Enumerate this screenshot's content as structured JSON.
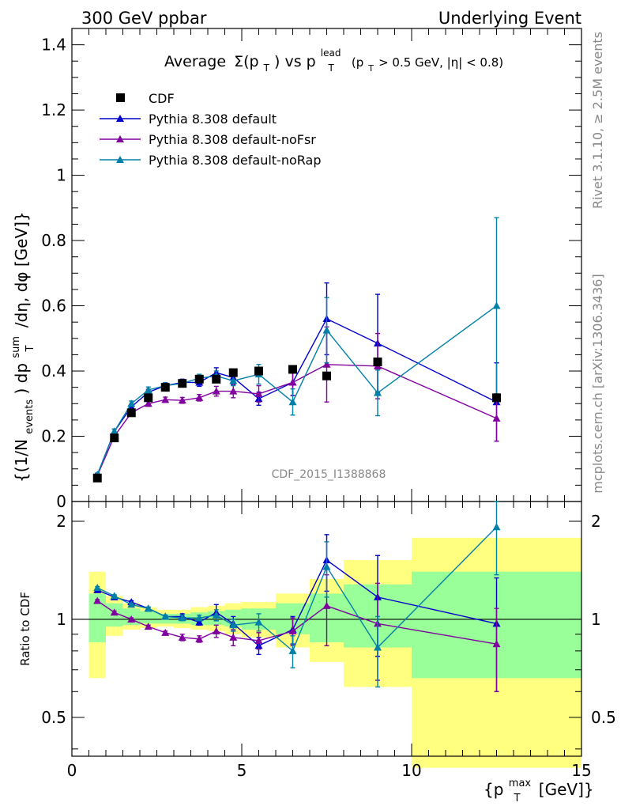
{
  "header": {
    "left": "300 GeV ppbar",
    "right": "Underlying Event"
  },
  "side": {
    "rivet": "Rivet 3.1.10, ≥ 2.5M events",
    "mcplots": "mcplots.cern.ch [arXiv:1306.3436]"
  },
  "chart_data": [
    {
      "type": "scatter",
      "title": {
        "main": "Average",
        "sym": "Σ(p",
        "sub1": "T",
        "close": ") vs p",
        "sup": "lead",
        "sub2": "T",
        "cut1": " (p",
        "sub3": "T",
        "cut2": " > 0.5 GeV, |η| < 0.8)"
      },
      "ylabel": {
        "a": "{(1/N",
        "a_sub": "events",
        "b": ") dp",
        "b_sup": "sum",
        "b_sub": "T",
        "c": "/dη, dφ [GeV]}"
      },
      "watermark": "CDF_2015_I1388868",
      "xlim": [
        0,
        15
      ],
      "ylim": [
        0,
        1.45
      ],
      "yticks": [
        "0",
        "0.2",
        "0.4",
        "0.6",
        "0.8",
        "1",
        "1.2",
        "1.4"
      ],
      "legend_position": "top-left",
      "x": [
        0.75,
        1.25,
        1.75,
        2.25,
        2.75,
        3.25,
        3.75,
        4.25,
        4.75,
        5.5,
        6.5,
        7.5,
        9.0,
        12.5
      ],
      "series": [
        {
          "name": "CDF",
          "color": "#000000",
          "marker": "square",
          "values": [
            0.072,
            0.195,
            0.272,
            0.318,
            0.35,
            0.362,
            0.375,
            0.375,
            0.395,
            0.4,
            0.405,
            0.385,
            0.428,
            0.318
          ]
        },
        {
          "name": "Pythia 8.308 default",
          "color": "#0000cc",
          "marker": "triangle",
          "values": [
            0.082,
            0.215,
            0.29,
            0.335,
            0.355,
            0.365,
            0.365,
            0.395,
            0.38,
            0.315,
            0.365,
            0.56,
            0.485,
            0.305
          ],
          "err": [
            0.005,
            0.007,
            0.008,
            0.009,
            0.009,
            0.01,
            0.012,
            0.015,
            0.02,
            0.02,
            0.04,
            0.11,
            0.15,
            0.12
          ]
        },
        {
          "name": "Pythia 8.308 default-noFsr",
          "color": "#8000a0",
          "marker": "triangle",
          "values": [
            0.08,
            0.2,
            0.272,
            0.3,
            0.312,
            0.31,
            0.318,
            0.338,
            0.338,
            0.33,
            0.365,
            0.42,
            0.415,
            0.255
          ],
          "err": [
            0.005,
            0.006,
            0.007,
            0.008,
            0.008,
            0.009,
            0.01,
            0.015,
            0.02,
            0.025,
            0.04,
            0.115,
            0.1,
            0.07
          ]
        },
        {
          "name": "Pythia 8.308 default-noRap",
          "color": "#0080a8",
          "marker": "triangle",
          "values": [
            0.082,
            0.215,
            0.3,
            0.342,
            0.355,
            0.362,
            0.378,
            0.385,
            0.37,
            0.39,
            0.305,
            0.525,
            0.333,
            0.6
          ],
          "err": [
            0.005,
            0.007,
            0.008,
            0.009,
            0.009,
            0.01,
            0.012,
            0.015,
            0.015,
            0.03,
            0.04,
            0.1,
            0.07,
            0.27
          ]
        }
      ]
    },
    {
      "type": "scatter",
      "ylabel": "Ratio to CDF",
      "xlabel": {
        "a": "{p",
        "sup": "max",
        "sub": "T",
        "b": " [GeV]}"
      },
      "xlim": [
        0,
        15
      ],
      "ylim": [
        0.38,
        2.3
      ],
      "xticks": [
        "0",
        "5",
        "10",
        "15"
      ],
      "yticks": [
        "0.5",
        "1",
        "2"
      ],
      "bins": [
        {
          "lo": 0.5,
          "hi": 1.0,
          "inner": [
            0.85,
            1.2
          ],
          "outer": [
            0.66,
            1.4
          ]
        },
        {
          "lo": 1.0,
          "hi": 1.5,
          "inner": [
            0.95,
            1.12
          ],
          "outer": [
            0.89,
            1.18
          ]
        },
        {
          "lo": 1.5,
          "hi": 2.0,
          "inner": [
            0.96,
            1.08
          ],
          "outer": [
            0.93,
            1.12
          ]
        },
        {
          "lo": 2.0,
          "hi": 2.5,
          "inner": [
            0.97,
            1.06
          ],
          "outer": [
            0.94,
            1.09
          ]
        },
        {
          "lo": 2.5,
          "hi": 3.0,
          "inner": [
            0.97,
            1.04
          ],
          "outer": [
            0.95,
            1.07
          ]
        },
        {
          "lo": 3.0,
          "hi": 3.5,
          "inner": [
            0.97,
            1.04
          ],
          "outer": [
            0.94,
            1.07
          ]
        },
        {
          "lo": 3.5,
          "hi": 4.0,
          "inner": [
            0.96,
            1.05
          ],
          "outer": [
            0.93,
            1.09
          ]
        },
        {
          "lo": 4.0,
          "hi": 4.5,
          "inner": [
            0.96,
            1.06
          ],
          "outer": [
            0.92,
            1.1
          ]
        },
        {
          "lo": 4.5,
          "hi": 5.0,
          "inner": [
            0.95,
            1.07
          ],
          "outer": [
            0.9,
            1.12
          ]
        },
        {
          "lo": 5.0,
          "hi": 6.0,
          "inner": [
            0.93,
            1.08
          ],
          "outer": [
            0.88,
            1.13
          ]
        },
        {
          "lo": 6.0,
          "hi": 7.0,
          "inner": [
            0.9,
            1.12
          ],
          "outer": [
            0.82,
            1.2
          ]
        },
        {
          "lo": 7.0,
          "hi": 8.0,
          "inner": [
            0.85,
            1.2
          ],
          "outer": [
            0.74,
            1.33
          ]
        },
        {
          "lo": 8.0,
          "hi": 10.0,
          "inner": [
            0.82,
            1.28
          ],
          "outer": [
            0.62,
            1.52
          ]
        },
        {
          "lo": 10.0,
          "hi": 15.0,
          "inner": [
            0.66,
            1.4
          ],
          "outer": [
            0.35,
            1.78
          ]
        }
      ],
      "series": [
        {
          "name": "Pythia 8.308 default",
          "color": "#0000cc",
          "values": [
            1.23,
            1.17,
            1.13,
            1.08,
            1.02,
            1.02,
            0.98,
            1.05,
            0.97,
            0.83,
            0.93,
            1.52,
            1.17,
            0.97
          ],
          "err": [
            0.01,
            0.01,
            0.01,
            0.01,
            0.01,
            0.02,
            0.02,
            0.06,
            0.05,
            0.05,
            0.09,
            0.3,
            0.4,
            0.37
          ]
        },
        {
          "name": "Pythia 8.308 default-noFsr",
          "color": "#8000a0",
          "values": [
            1.14,
            1.05,
            1.0,
            0.95,
            0.91,
            0.88,
            0.87,
            0.92,
            0.88,
            0.86,
            0.92,
            1.1,
            0.97,
            0.84
          ],
          "err": [
            0.01,
            0.01,
            0.01,
            0.01,
            0.01,
            0.02,
            0.02,
            0.04,
            0.05,
            0.05,
            0.09,
            0.27,
            0.32,
            0.24
          ]
        },
        {
          "name": "Pythia 8.308 default-noRap",
          "color": "#0080a8",
          "values": [
            1.25,
            1.18,
            1.11,
            1.08,
            1.02,
            1.01,
            1.01,
            1.03,
            0.96,
            0.98,
            0.8,
            1.45,
            0.82,
            1.92
          ],
          "err": [
            0.01,
            0.01,
            0.01,
            0.01,
            0.01,
            0.02,
            0.02,
            0.04,
            0.04,
            0.06,
            0.09,
            0.28,
            0.2,
            0.55
          ]
        }
      ]
    }
  ]
}
